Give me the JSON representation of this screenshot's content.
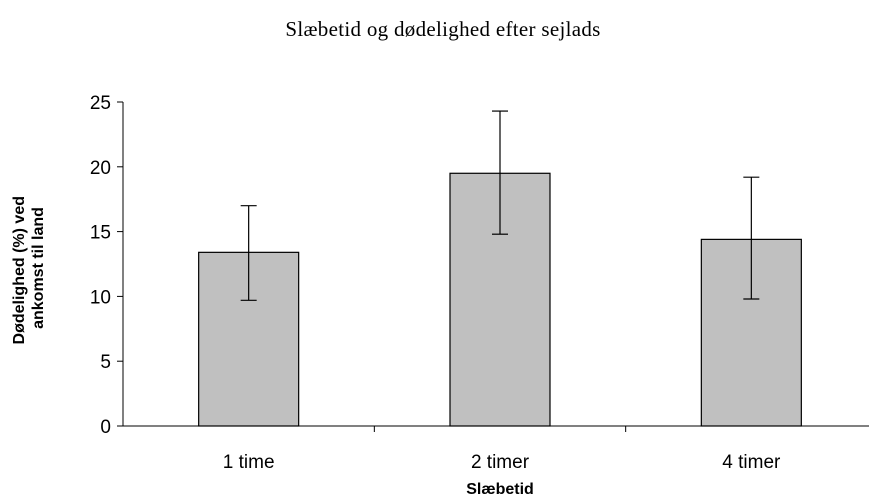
{
  "chart_data": {
    "type": "bar",
    "title": "Slæbetid og dødelighed efter sejlads",
    "xlabel": "Slæbetid",
    "ylabel_lines": [
      "Dødelighed (%) ved",
      "ankomst til land"
    ],
    "categories": [
      "1 time",
      "2 timer",
      "4 timer"
    ],
    "values": [
      13.4,
      19.5,
      14.4
    ],
    "error_low": [
      9.7,
      14.8,
      9.8
    ],
    "error_high": [
      17.0,
      24.3,
      19.2
    ],
    "ylim": [
      0,
      25
    ],
    "yticks": [
      0,
      5,
      10,
      15,
      20,
      25
    ],
    "grid": false,
    "legend": false,
    "bar_color": "#c0c0c0",
    "bar_edge_color": "#000000"
  }
}
